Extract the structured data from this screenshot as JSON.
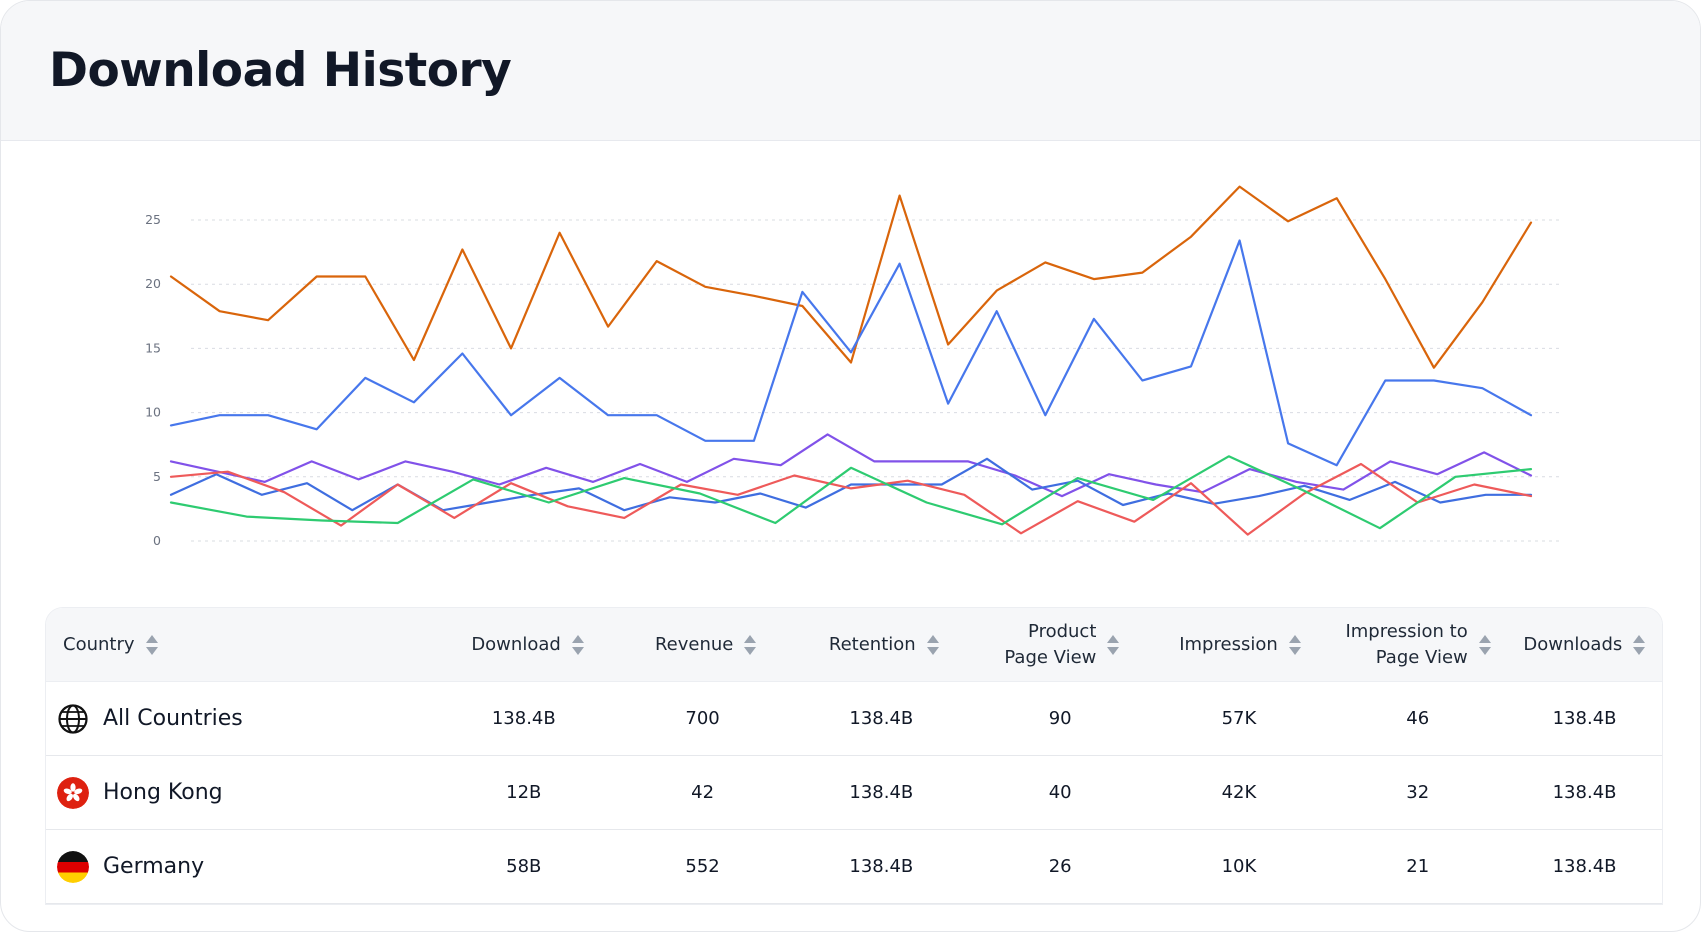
{
  "page": {
    "title": "Download History"
  },
  "chart_data": {
    "type": "line",
    "title": "",
    "xlabel": "",
    "ylabel": "",
    "ylim": [
      0,
      25
    ],
    "yticks": [
      0,
      5,
      10,
      15,
      20,
      25
    ],
    "grid": true,
    "x_count": 29,
    "series": [
      {
        "name": "orange",
        "color": "#d9650b",
        "values": [
          20.6,
          17.9,
          17.2,
          20.6,
          20.6,
          14.1,
          22.7,
          15.0,
          24.0,
          16.7,
          21.8,
          19.8,
          19.1,
          18.3,
          13.9,
          26.9,
          15.3,
          19.5,
          21.7,
          20.4,
          20.9,
          23.7,
          27.6,
          24.9,
          26.7,
          20.4,
          13.5,
          18.6,
          24.8
        ]
      },
      {
        "name": "blue",
        "color": "#4777ec",
        "values": [
          9.0,
          9.8,
          9.8,
          8.7,
          12.7,
          10.8,
          14.6,
          9.8,
          12.7,
          9.8,
          9.8,
          7.8,
          7.8,
          19.4,
          14.7,
          21.6,
          10.7,
          17.9,
          9.8,
          17.3,
          12.5,
          13.6,
          23.4,
          7.6,
          5.9,
          12.5,
          12.5,
          11.9,
          9.8
        ]
      },
      {
        "name": "purple",
        "color": "#8152e9",
        "values": [
          6.2,
          5.4,
          4.6,
          6.2,
          4.8,
          6.2,
          5.4,
          4.4,
          5.7,
          4.6,
          6.0,
          4.6,
          6.4,
          5.9,
          8.3,
          6.2,
          6.2,
          6.2,
          5.1,
          3.5,
          5.2,
          4.4,
          3.8,
          5.6,
          4.6,
          4.0,
          6.2,
          5.2,
          6.9,
          5.1
        ]
      },
      {
        "name": "slate_blue",
        "color": "#3f6ee0",
        "values": [
          3.6,
          5.2,
          3.6,
          4.5,
          2.4,
          4.4,
          2.4,
          3.0,
          3.6,
          4.1,
          2.4,
          3.4,
          3.0,
          3.7,
          2.6,
          4.4,
          4.4,
          4.4,
          6.4,
          4.0,
          4.7,
          2.8,
          3.7,
          2.9,
          3.5,
          4.3,
          3.2,
          4.6,
          3.0,
          3.6,
          3.6
        ]
      },
      {
        "name": "red",
        "color": "#ee5a5a",
        "values": [
          5.0,
          5.4,
          3.8,
          1.2,
          4.4,
          1.8,
          4.5,
          2.7,
          1.8,
          4.4,
          3.6,
          5.1,
          4.1,
          4.7,
          3.6,
          0.6,
          3.1,
          1.5,
          4.5,
          0.5,
          3.7,
          6.0,
          3.0,
          4.4,
          3.5
        ]
      },
      {
        "name": "green",
        "color": "#2ecb71",
        "values": [
          3.0,
          1.9,
          1.6,
          1.4,
          4.8,
          3.0,
          4.9,
          3.7,
          1.4,
          5.7,
          3.0,
          1.3,
          4.9,
          3.2,
          6.6,
          3.9,
          1.0,
          5.0,
          5.6
        ]
      }
    ]
  },
  "table": {
    "columns": [
      {
        "key": "country",
        "label": "Country"
      },
      {
        "key": "download",
        "label": "Download"
      },
      {
        "key": "revenue",
        "label": "Revenue"
      },
      {
        "key": "retention",
        "label": "Retention"
      },
      {
        "key": "ppv",
        "label_line1": "Product",
        "label_line2": "Page View"
      },
      {
        "key": "impression",
        "label": "Impression"
      },
      {
        "key": "itp",
        "label_line1": "Impression to",
        "label_line2": "Page View"
      },
      {
        "key": "downloads",
        "label": "Downloads"
      }
    ],
    "rows": [
      {
        "country": "All Countries",
        "flag": "globe-icon",
        "download": "138.4B",
        "revenue": "700",
        "retention": "138.4B",
        "ppv": "90",
        "impression": "57K",
        "itp": "46",
        "downloads": "138.4B"
      },
      {
        "country": "Hong Kong",
        "flag": "hong-kong-flag",
        "download": "12B",
        "revenue": "42",
        "retention": "138.4B",
        "ppv": "40",
        "impression": "42K",
        "itp": "32",
        "downloads": "138.4B"
      },
      {
        "country": "Germany",
        "flag": "germany-flag",
        "download": "58B",
        "revenue": "552",
        "retention": "138.4B",
        "ppv": "26",
        "impression": "10K",
        "itp": "21",
        "downloads": "138.4B"
      }
    ]
  }
}
